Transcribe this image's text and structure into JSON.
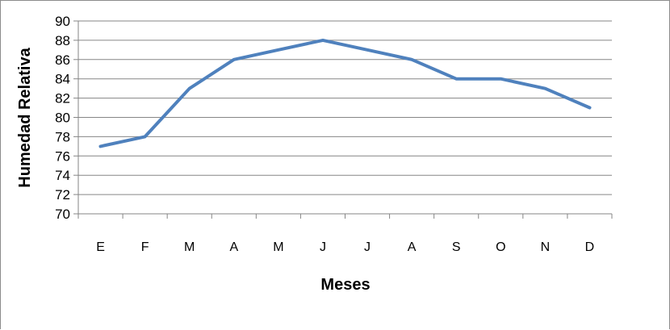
{
  "chart_data": {
    "type": "line",
    "title": "",
    "xlabel": "Meses",
    "ylabel": "Humedad Relativa",
    "categories": [
      "E",
      "F",
      "M",
      "A",
      "M",
      "J",
      "J",
      "A",
      "S",
      "O",
      "N",
      "D"
    ],
    "series": [
      {
        "values": [
          77,
          78,
          83,
          86,
          87,
          88,
          87,
          86,
          84,
          84,
          83,
          81
        ]
      }
    ],
    "ylim": [
      70,
      90
    ],
    "yticks": [
      "70",
      "72",
      "74",
      "76",
      "78",
      "80",
      "82",
      "84",
      "86",
      "88",
      "90"
    ],
    "grid": true,
    "legend": "none",
    "line_color": "#4f81bd",
    "grid_color": "#868686"
  }
}
